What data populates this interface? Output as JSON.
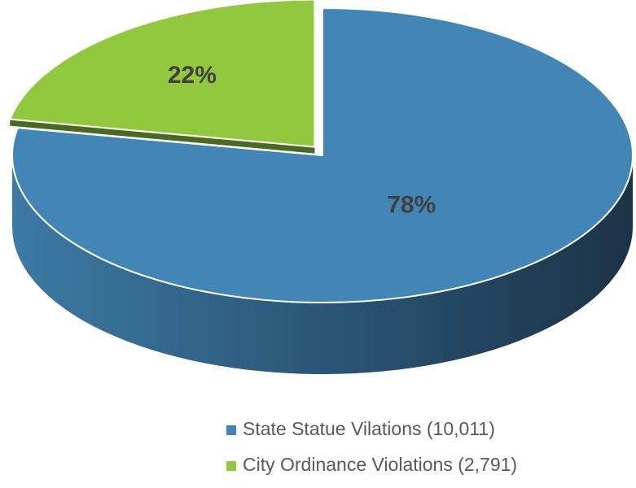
{
  "chart_data": {
    "type": "pie",
    "categories": [
      "State Statue Vilations (10,011)",
      "City Ordinance Violations (2,791)"
    ],
    "values": [
      78,
      22
    ],
    "value_labels": [
      "78%",
      "22%"
    ],
    "colors": [
      "#4286b5",
      "#92c83e"
    ],
    "legend": "bottom"
  }
}
